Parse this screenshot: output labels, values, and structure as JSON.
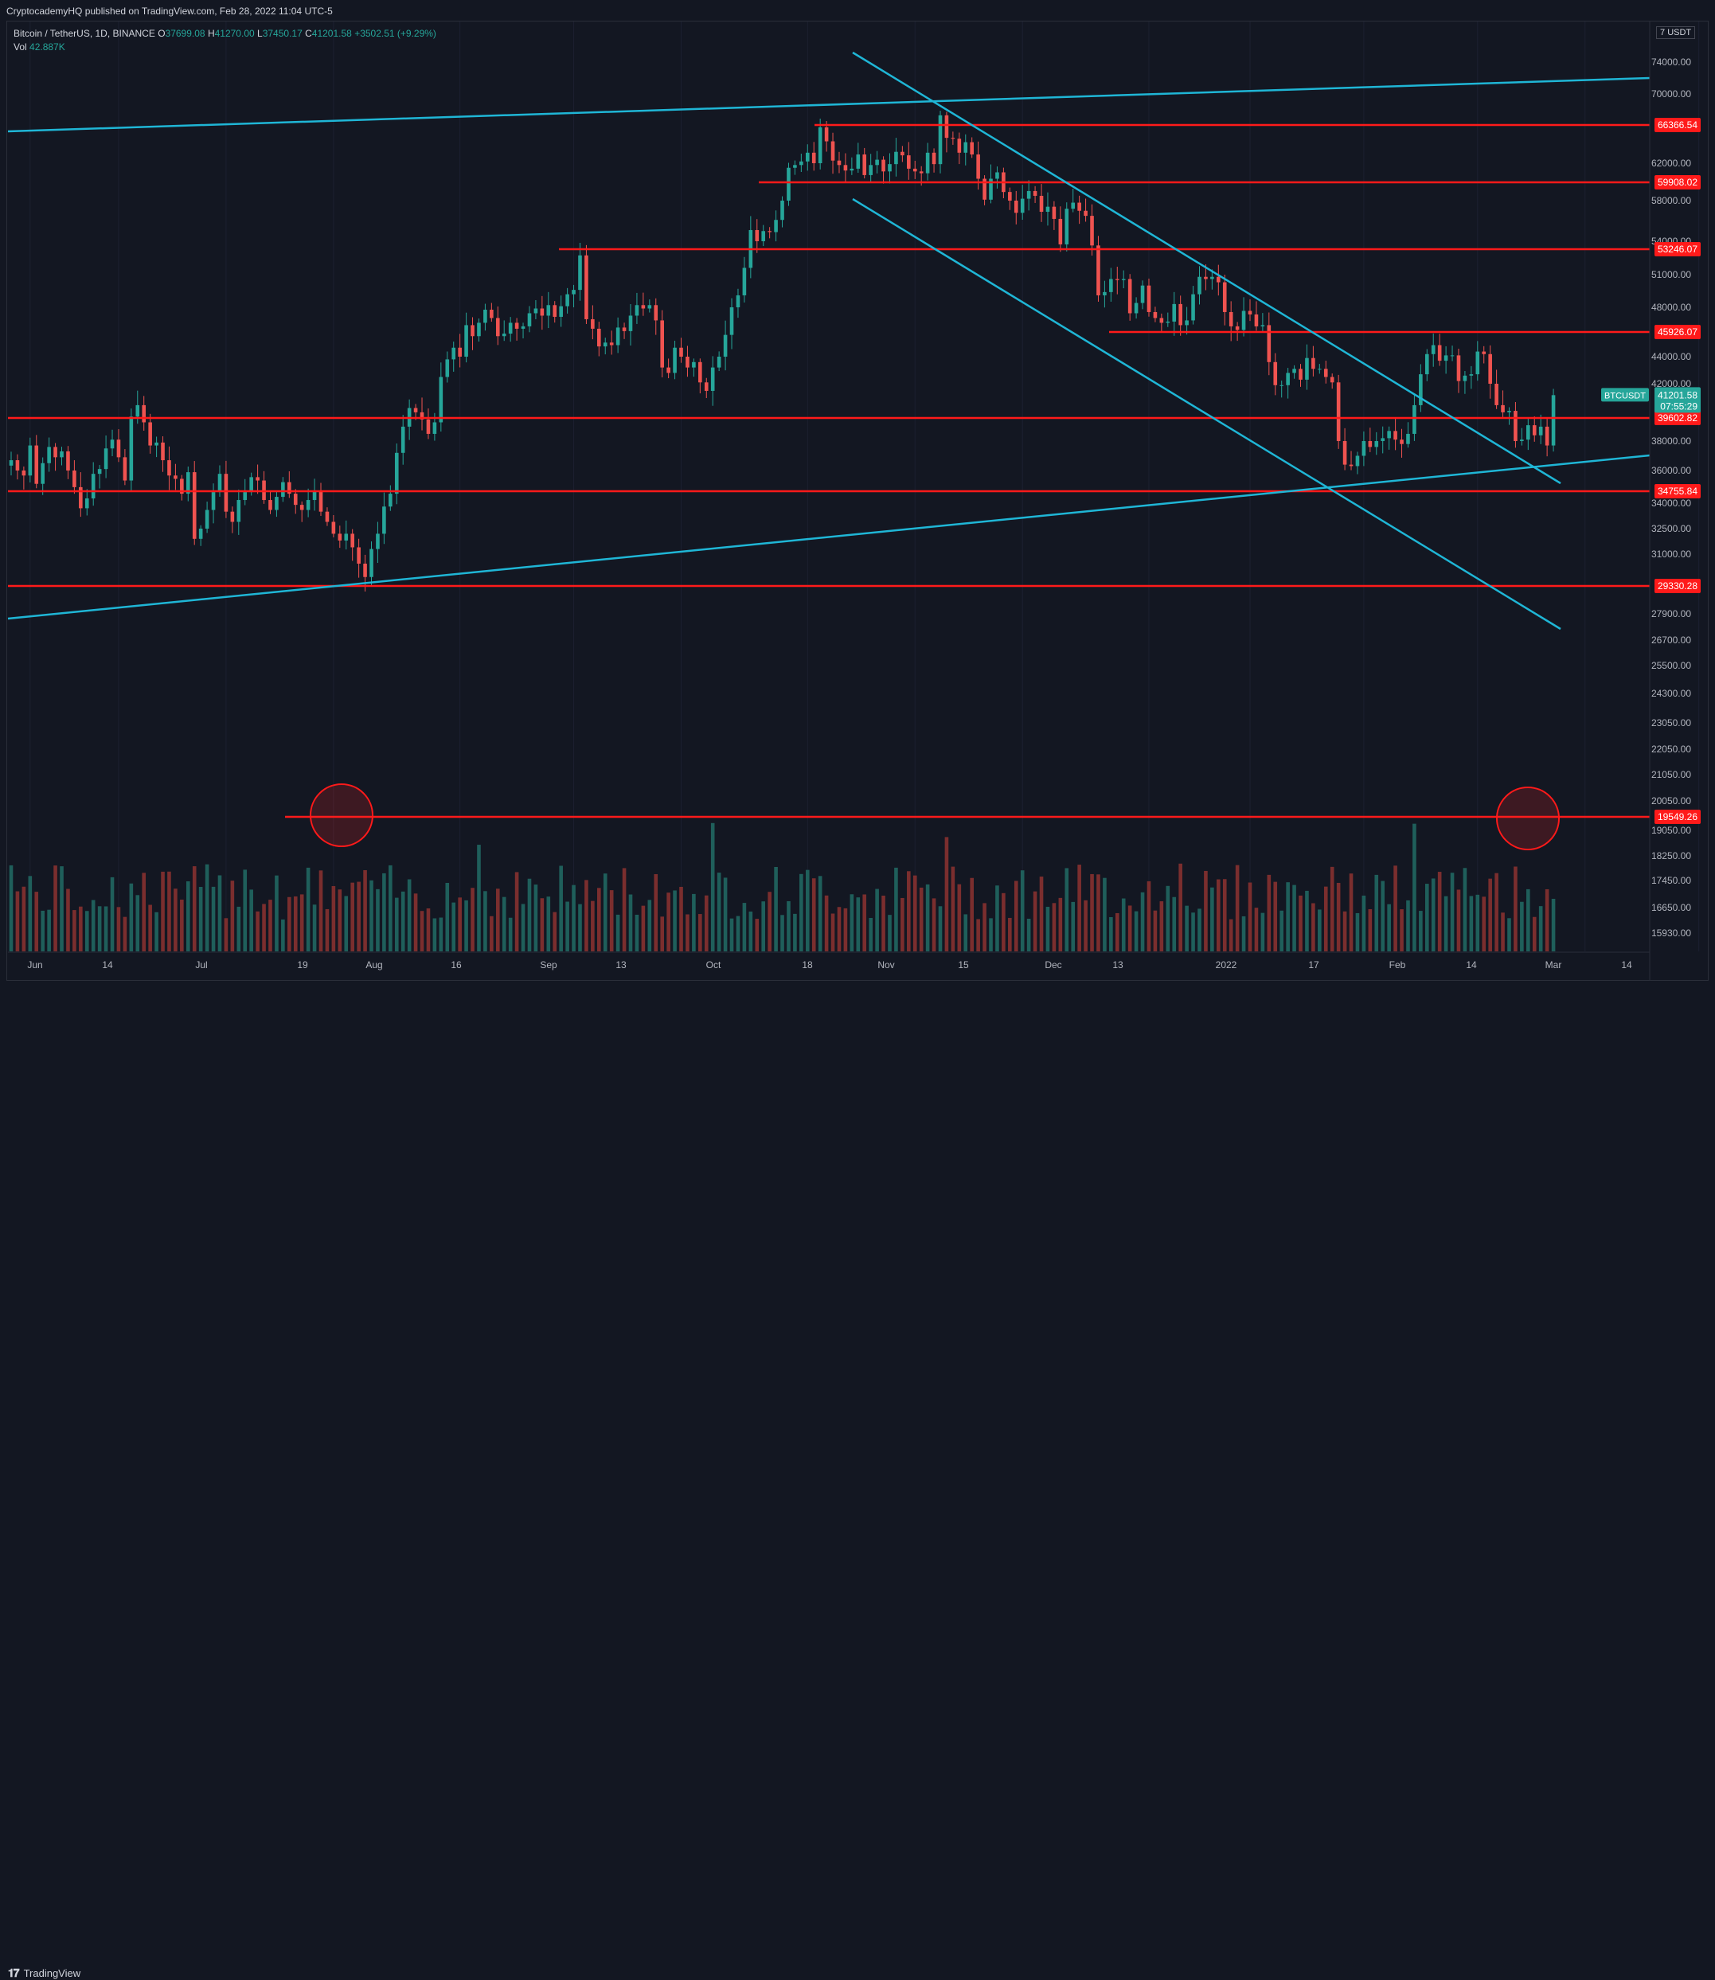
{
  "header": {
    "published": "CryptocademyHQ published on TradingView.com, Feb 28, 2022 11:04 UTC-5"
  },
  "legend": {
    "symbol": "Bitcoin / TetherUS, 1D, BINANCE",
    "o_label": "O",
    "o": "37699.08",
    "h_label": "H",
    "h": "41270.00",
    "l_label": "L",
    "l": "37450.17",
    "c_label": "C",
    "c": "41201.58",
    "change": "+3502.51 (+9.29%)",
    "vol_label": "Vol",
    "vol": "42.887K"
  },
  "axis": {
    "currency": "USDT",
    "top_clipped": "7"
  },
  "footer": {
    "brand": "TradingView"
  },
  "colors": {
    "bg": "#131722",
    "up": "#26a69a",
    "down": "#ef5350",
    "support": "#ff1a1a",
    "trend": "#1fb6d6"
  },
  "chart_data": {
    "type": "candlestick",
    "symbol": "BTCUSDT",
    "interval": "1D",
    "last_price": 41201.58,
    "last_price_label": "41201.58",
    "countdown": "07:55:29",
    "symbol_tag": "BTCUSDT",
    "price_axis_ticks": [
      "74000.00",
      "70000.00",
      "62000.00",
      "58000.00",
      "54000.00",
      "51000.00",
      "48000.00",
      "44000.00",
      "42000.00",
      "38000.00",
      "36000.00",
      "34000.00",
      "32500.00",
      "31000.00",
      "29330.28",
      "27900.00",
      "26700.00",
      "25500.00",
      "24300.00",
      "23050.00",
      "22050.00",
      "21050.00",
      "20050.00",
      "19050.00",
      "18250.00",
      "17450.00",
      "16650.00",
      "15930.00"
    ],
    "price_level_labels": [
      "66366.54",
      "59908.02",
      "53246.07",
      "45926.07",
      "39602.82",
      "34755.84",
      "29330.28",
      "19549.26"
    ],
    "horizontal_levels": [
      66366.54,
      59908.02,
      53246.07,
      45926.07,
      39602.82,
      34755.84,
      29330.28
    ],
    "volume_level": 19549.26,
    "time_axis_ticks": [
      "Jun",
      "14",
      "Jul",
      "19",
      "Aug",
      "16",
      "Sep",
      "13",
      "Oct",
      "18",
      "Nov",
      "15",
      "Dec",
      "13",
      "2022",
      "17",
      "Feb",
      "14",
      "Mar",
      "14"
    ],
    "candles_close": [
      36700,
      36000,
      35700,
      37700,
      35200,
      36500,
      37600,
      36900,
      37300,
      36000,
      35000,
      33700,
      34300,
      35800,
      36100,
      37500,
      38100,
      36900,
      35400,
      39700,
      40500,
      39300,
      37700,
      37900,
      36700,
      35700,
      35500,
      34600,
      35900,
      31900,
      32500,
      33600,
      34700,
      35800,
      33500,
      32900,
      34200,
      34700,
      35600,
      35400,
      34200,
      33600,
      34400,
      35300,
      34600,
      33900,
      33600,
      34200,
      34800,
      33500,
      32900,
      32200,
      31800,
      32200,
      31400,
      30500,
      29800,
      31300,
      32200,
      33800,
      34600,
      37200,
      39000,
      40300,
      40000,
      39500,
      38500,
      39300,
      42500,
      43800,
      44700,
      44000,
      46500,
      45600,
      46700,
      47800,
      47100,
      45600,
      45800,
      46700,
      46200,
      46400,
      47500,
      47900,
      47300,
      48200,
      47200,
      48100,
      49200,
      49600,
      52700,
      47000,
      46200,
      44800,
      45100,
      44900,
      46300,
      46000,
      47300,
      48200,
      47900,
      48200,
      46900,
      43200,
      42800,
      44700,
      44000,
      43200,
      43600,
      42100,
      41500,
      43200,
      44000,
      45700,
      48000,
      49100,
      51600,
      55100,
      54000,
      55000,
      54900,
      56100,
      58000,
      61500,
      61800,
      62200,
      63200,
      62000,
      66100,
      64500,
      62300,
      61800,
      61200,
      61400,
      63000,
      60700,
      61800,
      62400,
      61100,
      61900,
      63300,
      62900,
      61400,
      61100,
      60900,
      63200,
      61900,
      67500,
      64900,
      64800,
      63200,
      64400,
      63000,
      60300,
      58100,
      60300,
      61000,
      58900,
      58000,
      56800,
      58200,
      59000,
      58500,
      56900,
      57400,
      56200,
      53700,
      57200,
      57800,
      57000,
      56500,
      53600,
      49100,
      49400,
      50600,
      50500,
      50600,
      47500,
      48400,
      50000,
      47600,
      47100,
      46700,
      46800,
      48300,
      46500,
      46900,
      49200,
      50800,
      50600,
      50800,
      50300,
      47600,
      46400,
      46100,
      47700,
      47400,
      46400,
      46500,
      43600,
      41900,
      41900,
      42800,
      43100,
      42300,
      43900,
      43100,
      43100,
      42500,
      42100,
      38000,
      36400,
      36300,
      37000,
      38000,
      37600,
      38000,
      38200,
      38700,
      38100,
      37800,
      38500,
      40500,
      42700,
      44200,
      44900,
      43700,
      44100,
      44100,
      42200,
      42600,
      42700,
      44400,
      44200,
      42000,
      40500,
      40000,
      40100,
      38000,
      38100,
      39100,
      38400,
      39000,
      37700,
      41201
    ]
  }
}
